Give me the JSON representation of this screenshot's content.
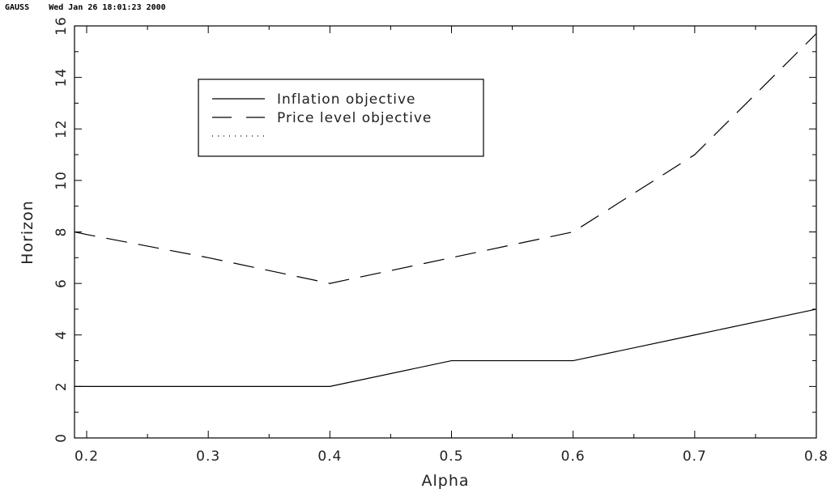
{
  "header": {
    "program": "GAUSS",
    "timestamp": "Wed Jan 26 18:01:23 2000"
  },
  "chart_data": {
    "type": "line",
    "title": "",
    "xlabel": "Alpha",
    "ylabel": "Horizon",
    "xlim": [
      0.19,
      0.8
    ],
    "ylim": [
      0,
      16
    ],
    "x_ticks": [
      0.2,
      0.3,
      0.4,
      0.5,
      0.6,
      0.7,
      0.8
    ],
    "x_tick_labels": [
      "0.2",
      "0.3",
      "0.4",
      "0.5",
      "0.6",
      "0.7",
      "0.8"
    ],
    "y_ticks": [
      0,
      2,
      4,
      6,
      8,
      10,
      12,
      14,
      16
    ],
    "y_tick_labels": [
      "0",
      "2",
      "4",
      "6",
      "8",
      "10",
      "12",
      "14",
      "16"
    ],
    "grid": false,
    "legend_position": "top-left",
    "series": [
      {
        "name": "Inflation objective",
        "style": "solid",
        "color": "#000000",
        "x": [
          0.19,
          0.2,
          0.3,
          0.4,
          0.5,
          0.6,
          0.7,
          0.8
        ],
        "y": [
          2,
          2,
          2,
          2,
          3,
          3,
          4,
          5
        ]
      },
      {
        "name": "Price level objective",
        "style": "dashed",
        "color": "#000000",
        "x": [
          0.19,
          0.2,
          0.3,
          0.4,
          0.5,
          0.6,
          0.7,
          0.8
        ],
        "y": [
          8,
          7.9,
          7,
          6,
          7,
          8,
          11,
          15.7
        ]
      },
      {
        "name": "",
        "style": "dotted",
        "color": "#000000",
        "x": [],
        "y": []
      }
    ]
  }
}
